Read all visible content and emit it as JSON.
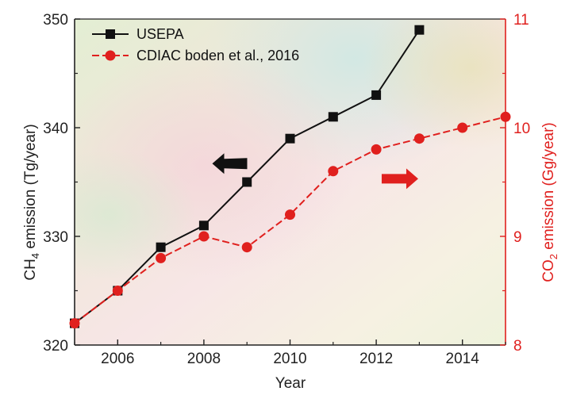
{
  "chart_data": {
    "type": "line",
    "title": "",
    "xlabel": "Year",
    "ylabel_left": {
      "prefix": "CH",
      "sub": "4",
      "suffix": " emission (Tg/year)"
    },
    "ylabel_right": {
      "prefix": "CO",
      "sub": "2",
      "suffix": " emission (Gg/year)"
    },
    "xlim": [
      2005,
      2015
    ],
    "ylim_left": [
      320,
      350
    ],
    "ylim_right": [
      8,
      11
    ],
    "x_ticks": [
      2006,
      2008,
      2010,
      2012,
      2014
    ],
    "y_left_ticks": [
      320,
      330,
      340,
      350
    ],
    "y_right_ticks": [
      8,
      9,
      10,
      11
    ],
    "legend_position": "top-left",
    "grid": false,
    "series": [
      {
        "name": "USEPA",
        "axis": "left",
        "color": "#111111",
        "marker": "square",
        "x": [
          2005,
          2006,
          2007,
          2008,
          2009,
          2010,
          2011,
          2012,
          2013
        ],
        "y": [
          322,
          325,
          329,
          331,
          335,
          339,
          341,
          343,
          349
        ]
      },
      {
        "name": "CDIAC boden et al., 2016",
        "axis": "right",
        "color": "#e0201e",
        "marker": "circle",
        "x": [
          2005,
          2006,
          2007,
          2008,
          2009,
          2010,
          2011,
          2012,
          2013,
          2014,
          2015
        ],
        "y": [
          8.2,
          8.5,
          8.8,
          9.0,
          8.9,
          9.2,
          9.6,
          9.8,
          9.9,
          10.0,
          10.1
        ]
      }
    ],
    "annotations": [
      {
        "type": "arrow",
        "direction": "left",
        "color": "#111111",
        "axis": "left"
      },
      {
        "type": "arrow",
        "direction": "right",
        "color": "#e0201e",
        "axis": "right"
      }
    ]
  }
}
